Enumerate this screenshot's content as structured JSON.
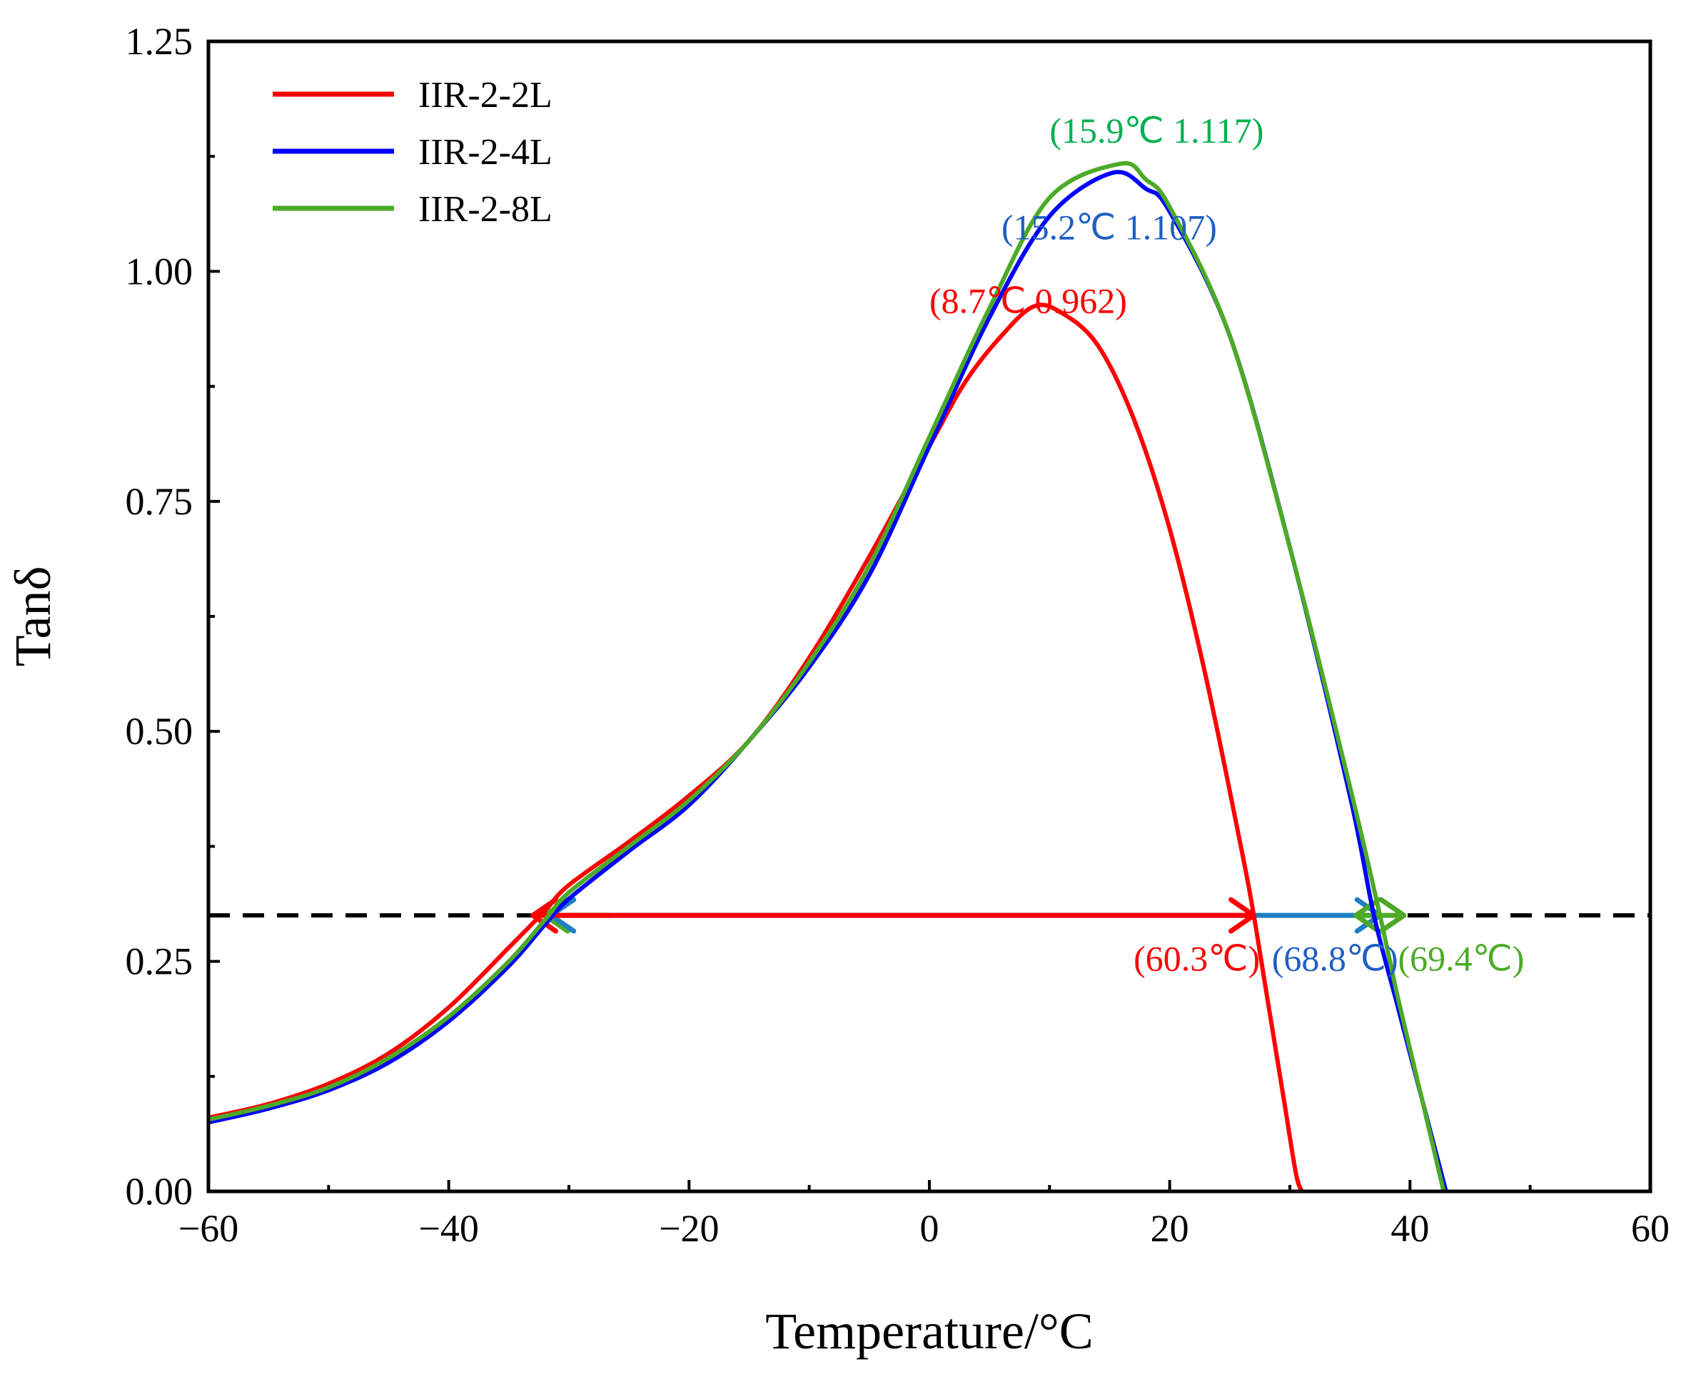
{
  "chart_data": {
    "type": "line",
    "title": "",
    "xlabel": "Temperature/°C",
    "ylabel": "Tanδ",
    "xlim": [
      -60,
      60
    ],
    "ylim": [
      0,
      1.25
    ],
    "xticks": [
      -60,
      -40,
      -20,
      0,
      20,
      40,
      60
    ],
    "xtick_labels": [
      "−60",
      "−40",
      "−20",
      "0",
      "20",
      "40",
      "60"
    ],
    "yticks": [
      0,
      0.25,
      0.5,
      0.75,
      1.0,
      1.25
    ],
    "ytick_labels": [
      "0.00",
      "0.25",
      "0.50",
      "0.75",
      "1.00",
      "1.25"
    ],
    "grid": false,
    "legend_position": "top-left",
    "reference_line": {
      "y": 0.3,
      "style": "dashed",
      "color": "#000000"
    },
    "series": [
      {
        "name": "IIR-2-2L",
        "color": "#ff0000",
        "points": [
          [
            -60,
            0.08
          ],
          [
            -55,
            0.095
          ],
          [
            -50,
            0.117
          ],
          [
            -45,
            0.15
          ],
          [
            -40,
            0.2
          ],
          [
            -35,
            0.265
          ],
          [
            -32,
            0.305
          ],
          [
            -30,
            0.333
          ],
          [
            -25,
            0.38
          ],
          [
            -20,
            0.43
          ],
          [
            -15,
            0.49
          ],
          [
            -10,
            0.58
          ],
          [
            -5,
            0.69
          ],
          [
            0,
            0.81
          ],
          [
            3,
            0.88
          ],
          [
            6,
            0.93
          ],
          [
            8.7,
            0.962
          ],
          [
            11,
            0.955
          ],
          [
            14,
            0.92
          ],
          [
            17,
            0.84
          ],
          [
            20,
            0.72
          ],
          [
            23,
            0.56
          ],
          [
            26,
            0.37
          ],
          [
            27,
            0.3
          ],
          [
            28,
            0.22
          ],
          [
            29.5,
            0.1
          ],
          [
            30.5,
            0.02
          ],
          [
            31,
            0
          ]
        ]
      },
      {
        "name": "IIR-2-4L",
        "color": "#0000ff",
        "points": [
          [
            -60,
            0.075
          ],
          [
            -55,
            0.09
          ],
          [
            -50,
            0.11
          ],
          [
            -45,
            0.14
          ],
          [
            -40,
            0.185
          ],
          [
            -35,
            0.245
          ],
          [
            -32,
            0.29
          ],
          [
            -30,
            0.318
          ],
          [
            -25,
            0.37
          ],
          [
            -20,
            0.42
          ],
          [
            -15,
            0.49
          ],
          [
            -10,
            0.57
          ],
          [
            -5,
            0.67
          ],
          [
            0,
            0.81
          ],
          [
            5,
            0.95
          ],
          [
            10,
            1.06
          ],
          [
            15.2,
            1.107
          ],
          [
            18,
            1.09
          ],
          [
            20,
            1.065
          ],
          [
            25,
            0.93
          ],
          [
            30,
            0.7
          ],
          [
            35,
            0.43
          ],
          [
            37,
            0.3
          ],
          [
            39,
            0.2
          ],
          [
            41,
            0.1
          ],
          [
            43,
            0
          ]
        ]
      },
      {
        "name": "IIR-2-8L",
        "color": "#4caa27",
        "points": [
          [
            -60,
            0.078
          ],
          [
            -55,
            0.093
          ],
          [
            -50,
            0.113
          ],
          [
            -45,
            0.145
          ],
          [
            -40,
            0.19
          ],
          [
            -35,
            0.25
          ],
          [
            -32,
            0.295
          ],
          [
            -30,
            0.325
          ],
          [
            -25,
            0.375
          ],
          [
            -20,
            0.425
          ],
          [
            -15,
            0.49
          ],
          [
            -10,
            0.575
          ],
          [
            -5,
            0.68
          ],
          [
            0,
            0.82
          ],
          [
            5,
            0.96
          ],
          [
            10,
            1.08
          ],
          [
            15.9,
            1.117
          ],
          [
            18,
            1.1
          ],
          [
            20,
            1.07
          ],
          [
            25,
            0.93
          ],
          [
            30,
            0.7
          ],
          [
            35,
            0.44
          ],
          [
            37.5,
            0.3
          ],
          [
            39,
            0.21
          ],
          [
            41,
            0.1
          ],
          [
            42.8,
            0
          ]
        ]
      }
    ],
    "annotations": [
      {
        "text": "(15.9℃  1.117)",
        "color": "#00b050",
        "x": 10,
        "y": 1.14
      },
      {
        "text": "(15.2℃  1.107)",
        "color": "#1f5fc4",
        "x": 6,
        "y": 1.035
      },
      {
        "text": "(8.7℃  0.962)",
        "color": "#ff0000",
        "x": 0,
        "y": 0.955
      },
      {
        "text": "(60.3℃)",
        "color": "#ff0000",
        "x": 17,
        "y": 0.24
      },
      {
        "text": "(68.8℃)",
        "color": "#1f5fc4",
        "x": 28.5,
        "y": 0.24
      },
      {
        "text": "(69.4℃)",
        "color": "#4caa27",
        "x": 39,
        "y": 0.24
      }
    ],
    "arrows": [
      {
        "color": "#4caa27",
        "x1": -32,
        "x2": -26.5,
        "y": 0.3,
        "head": "end"
      },
      {
        "color": "#1f7fc4",
        "x1": -31.5,
        "x2": 37.5,
        "y": 0.3,
        "head": "both"
      },
      {
        "color": "#ff0000",
        "x1": -33,
        "x2": 27,
        "y": 0.3,
        "head": "both"
      },
      {
        "color": "#4caa27",
        "x1": 35.5,
        "x2": 39.5,
        "y": 0.3,
        "head": "both"
      }
    ]
  }
}
